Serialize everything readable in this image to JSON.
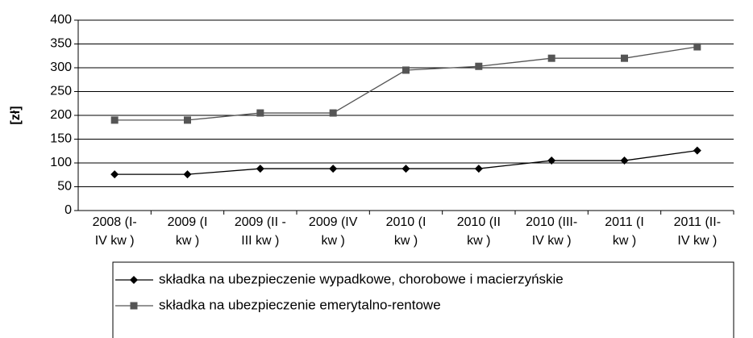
{
  "chart_data": {
    "type": "line",
    "y_label": "[zł]",
    "categories": [
      "2008 (I-\nIV kw )",
      "2009 (I\nkw )",
      "2009 (II -\nIII kw )",
      "2009 (IV\nkw )",
      "2010 (I\nkw )",
      "2010 (II\nkw )",
      "2010 (III-\nIV kw )",
      "2011 (I\nkw )",
      "2011 (II-\nIV kw )"
    ],
    "series": [
      {
        "name": "składka na ubezpieczenie wypadkowe, chorobowe i macierzyńskie",
        "color": "#000000",
        "marker": "diamond",
        "values": [
          76,
          76,
          88,
          88,
          88,
          88,
          105,
          105,
          126
        ]
      },
      {
        "name": "składka na ubezpieczenie emerytalno-rentowe",
        "color": "#555555",
        "marker": "square",
        "values": [
          190,
          190,
          205,
          205,
          295,
          303,
          320,
          320,
          344
        ]
      }
    ],
    "ylim": [
      0,
      400
    ],
    "yticks": [
      0,
      50,
      100,
      150,
      200,
      250,
      300,
      350,
      400
    ],
    "grid": true
  }
}
